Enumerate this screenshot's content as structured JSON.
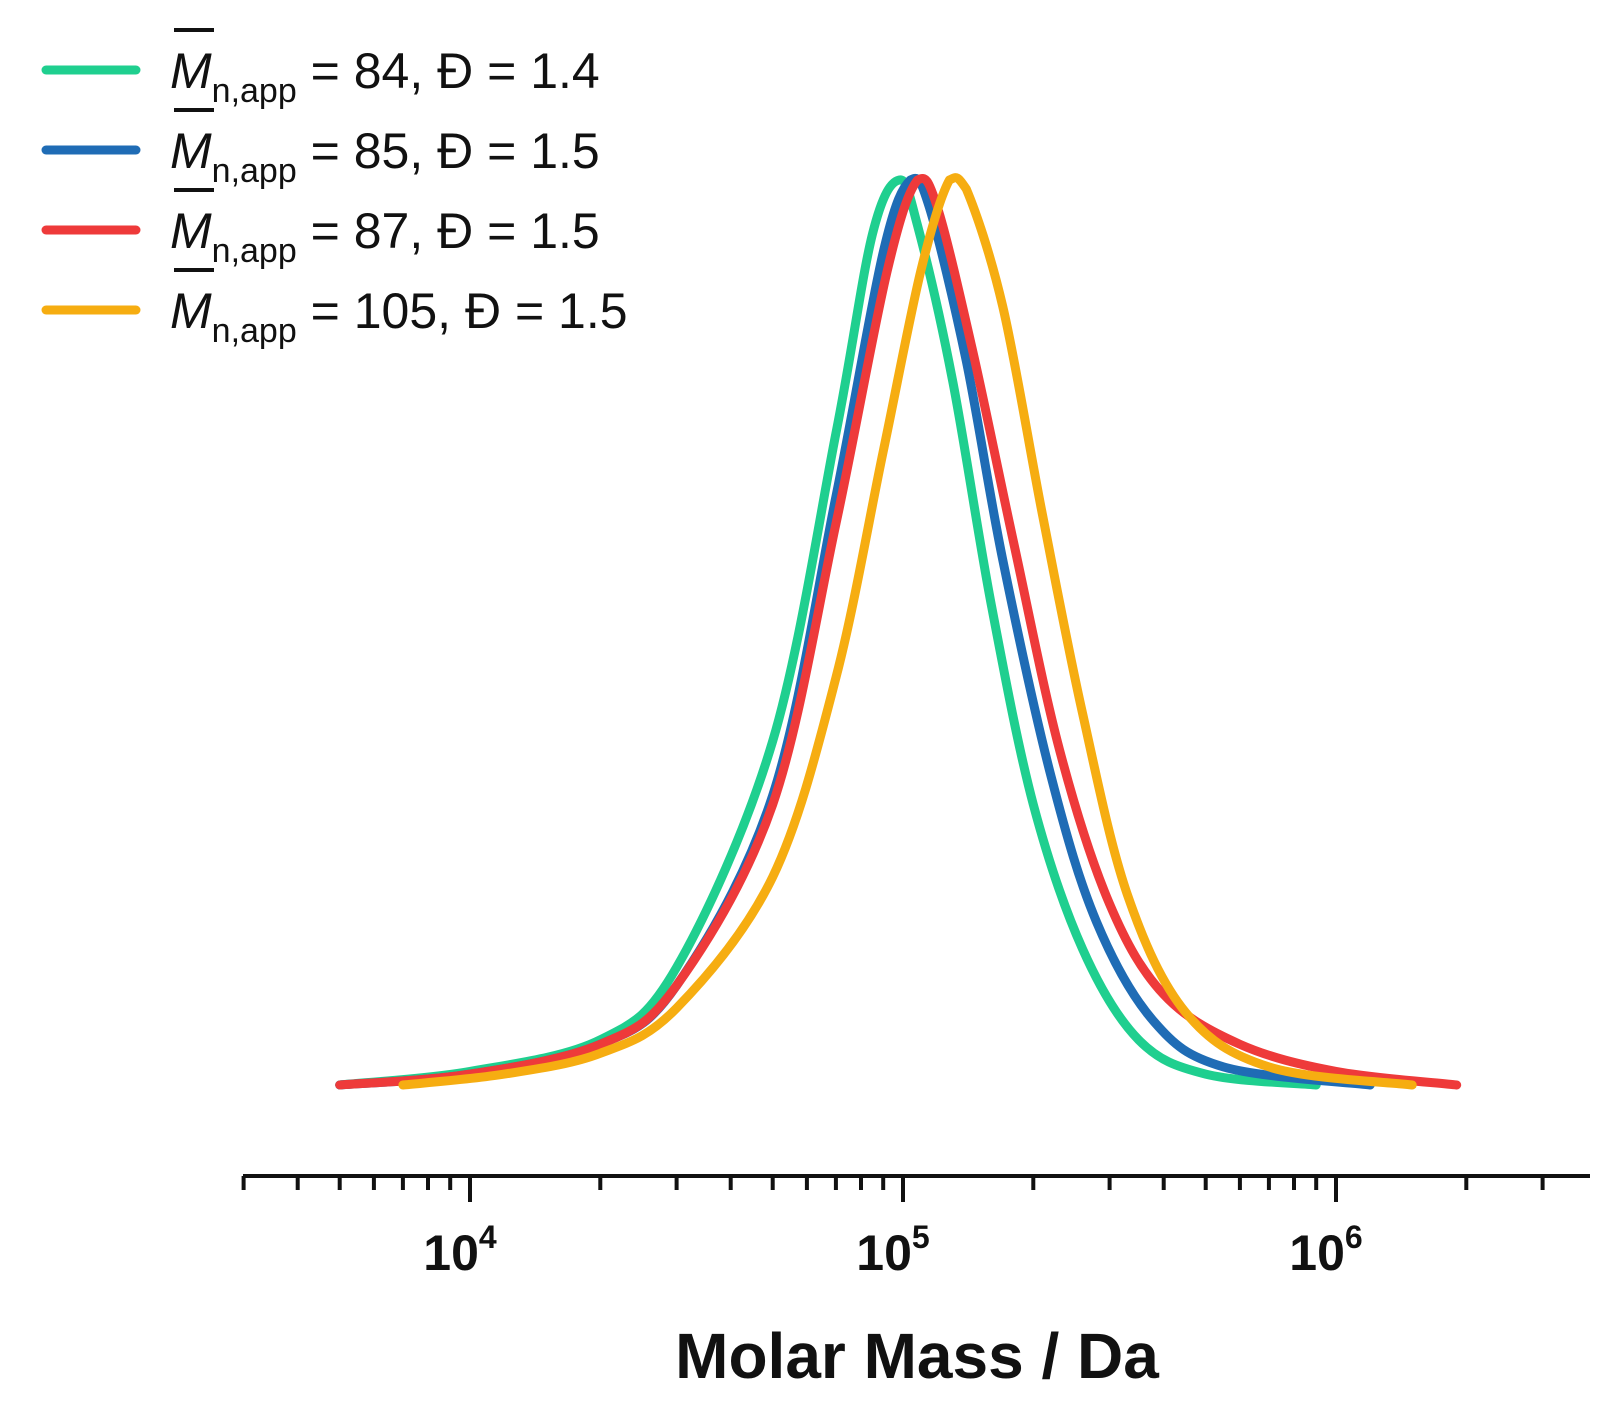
{
  "chart_data": {
    "type": "line",
    "title": "",
    "xlabel": "Molar Mass / Da",
    "ylabel": "",
    "xscale": "log",
    "xlim": [
      3000,
      4000000
    ],
    "ylim": [
      0,
      1
    ],
    "grid": false,
    "legend_position": "top-left",
    "x_ticks": [
      {
        "base": "10",
        "exp": "4",
        "value": 10000
      },
      {
        "base": "10",
        "exp": "5",
        "value": 100000
      },
      {
        "base": "10",
        "exp": "6",
        "value": 1000000
      }
    ],
    "series": [
      {
        "name": "M̅n,app = 84, Đ = 1.4",
        "label_main": "M",
        "label_sub": "n,app",
        "label_rest": " = 84, Đ = 1.4",
        "color": "#1fcf8f",
        "x": [
          5000,
          10000,
          20000,
          30000,
          50000,
          70000,
          85000,
          98000,
          108000,
          130000,
          160000,
          200000,
          260000,
          350000,
          500000,
          900000
        ],
        "y": [
          0.0,
          0.015,
          0.05,
          0.13,
          0.38,
          0.72,
          0.94,
          1.0,
          0.95,
          0.78,
          0.53,
          0.31,
          0.15,
          0.05,
          0.012,
          0.0
        ]
      },
      {
        "name": "M̅n,app = 85, Đ = 1.5",
        "label_main": "M",
        "label_sub": "n,app",
        "label_rest": " = 85, Đ = 1.5",
        "color": "#1f6cb5",
        "x": [
          5000,
          10000,
          20000,
          30000,
          50000,
          70000,
          90000,
          104000,
          115000,
          140000,
          170000,
          220000,
          280000,
          380000,
          550000,
          1200000
        ],
        "y": [
          0.0,
          0.012,
          0.045,
          0.11,
          0.32,
          0.65,
          0.92,
          1.0,
          0.97,
          0.8,
          0.58,
          0.34,
          0.18,
          0.07,
          0.02,
          0.0
        ]
      },
      {
        "name": "M̅n,app = 87, Đ = 1.5",
        "label_main": "M",
        "label_sub": "n,app",
        "label_rest": " = 87, Đ = 1.5",
        "color": "#ee3a3a",
        "x": [
          5000,
          10000,
          20000,
          30000,
          50000,
          70000,
          92000,
          108000,
          120000,
          145000,
          180000,
          230000,
          300000,
          400000,
          600000,
          1000000,
          1900000
        ],
        "y": [
          0.0,
          0.012,
          0.045,
          0.11,
          0.31,
          0.62,
          0.9,
          1.0,
          0.97,
          0.81,
          0.6,
          0.37,
          0.2,
          0.1,
          0.045,
          0.015,
          0.0
        ]
      },
      {
        "name": "M̅n,app = 105, Đ = 1.5",
        "label_main": "M",
        "label_sub": "n,app",
        "label_rest": " = 105, Đ = 1.5",
        "color": "#f6ad11",
        "x": [
          7000,
          12000,
          20000,
          30000,
          50000,
          70000,
          90000,
          110000,
          128000,
          140000,
          170000,
          210000,
          260000,
          330000,
          450000,
          700000,
          1500000
        ],
        "y": [
          0.0,
          0.012,
          0.035,
          0.085,
          0.23,
          0.45,
          0.7,
          0.9,
          1.0,
          0.99,
          0.86,
          0.63,
          0.41,
          0.21,
          0.08,
          0.02,
          0.0
        ]
      }
    ]
  }
}
